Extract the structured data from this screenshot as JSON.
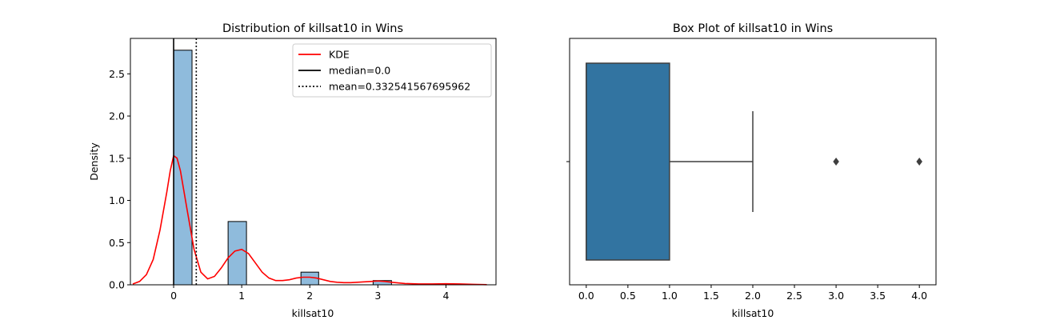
{
  "chart_data": [
    {
      "type": "bar",
      "title": "Distribution of killsat10 in Wins",
      "xlabel": "killsat10",
      "ylabel": "Density",
      "xlim": [
        -0.635,
        4.735
      ],
      "ylim": [
        0,
        2.92
      ],
      "xticks": [
        {
          "value": 0,
          "label": "0"
        },
        {
          "value": 1,
          "label": "1"
        },
        {
          "value": 2,
          "label": "2"
        },
        {
          "value": 3,
          "label": "3"
        },
        {
          "value": 4,
          "label": "4"
        }
      ],
      "yticks": [
        {
          "value": 0.0,
          "label": "0.0"
        },
        {
          "value": 0.5,
          "label": "0.5"
        },
        {
          "value": 1.0,
          "label": "1.0"
        },
        {
          "value": 1.5,
          "label": "1.5"
        },
        {
          "value": 2.0,
          "label": "2.0"
        },
        {
          "value": 2.5,
          "label": "2.5"
        }
      ],
      "histogram": {
        "bar_color": "#8fbbdc",
        "edge_color": "#000000",
        "bins": [
          {
            "x0": 0.0,
            "x1": 0.27,
            "density": 2.78
          },
          {
            "x0": 0.8,
            "x1": 1.07,
            "density": 0.75
          },
          {
            "x0": 1.87,
            "x1": 2.13,
            "density": 0.15
          },
          {
            "x0": 2.93,
            "x1": 3.2,
            "density": 0.05
          }
        ]
      },
      "kde": {
        "name": "KDE",
        "color": "#ff0000",
        "x": [
          -0.6,
          -0.5,
          -0.4,
          -0.3,
          -0.2,
          -0.1,
          -0.05,
          0.0,
          0.05,
          0.1,
          0.2,
          0.3,
          0.4,
          0.5,
          0.6,
          0.7,
          0.8,
          0.9,
          1.0,
          1.1,
          1.2,
          1.3,
          1.4,
          1.5,
          1.6,
          1.7,
          1.8,
          1.9,
          2.0,
          2.1,
          2.2,
          2.3,
          2.4,
          2.5,
          2.6,
          2.7,
          2.8,
          2.9,
          3.0,
          3.1,
          3.2,
          3.4,
          3.6,
          3.8,
          4.0,
          4.2,
          4.4,
          4.6
        ],
        "y": [
          0.01,
          0.04,
          0.12,
          0.3,
          0.65,
          1.1,
          1.35,
          1.53,
          1.5,
          1.35,
          0.88,
          0.42,
          0.15,
          0.07,
          0.1,
          0.2,
          0.32,
          0.4,
          0.42,
          0.37,
          0.26,
          0.15,
          0.08,
          0.05,
          0.05,
          0.06,
          0.08,
          0.09,
          0.09,
          0.08,
          0.06,
          0.04,
          0.03,
          0.025,
          0.025,
          0.03,
          0.035,
          0.04,
          0.045,
          0.04,
          0.03,
          0.015,
          0.01,
          0.01,
          0.012,
          0.01,
          0.005,
          0.002
        ]
      },
      "median": {
        "name": "median=0.0",
        "value": 0.0,
        "color": "#000000",
        "style": "solid"
      },
      "mean": {
        "name": "mean=0.332541567695962",
        "value": 0.332541567695962,
        "color": "#000000",
        "style": "dotted"
      },
      "legend": {
        "location": "top-right",
        "entries": [
          {
            "label": "KDE",
            "color": "#ff0000",
            "style": "solid"
          },
          {
            "label": "median=0.0",
            "color": "#000000",
            "style": "solid"
          },
          {
            "label": "mean=0.332541567695962",
            "color": "#000000",
            "style": "dotted"
          }
        ]
      },
      "grid": false
    },
    {
      "type": "box",
      "title": "Box Plot of killsat10 in Wins",
      "xlabel": "killsat10",
      "ylabel": "",
      "xlim": [
        -0.2,
        4.2
      ],
      "xticks": [
        {
          "value": 0.0,
          "label": "0.0"
        },
        {
          "value": 0.5,
          "label": "0.5"
        },
        {
          "value": 1.0,
          "label": "1.0"
        },
        {
          "value": 1.5,
          "label": "1.5"
        },
        {
          "value": 2.0,
          "label": "2.0"
        },
        {
          "value": 2.5,
          "label": "2.5"
        },
        {
          "value": 3.0,
          "label": "3.0"
        },
        {
          "value": 3.5,
          "label": "3.5"
        },
        {
          "value": 4.0,
          "label": "4.0"
        }
      ],
      "box": {
        "whisker_low": 0.0,
        "q1": 0.0,
        "median": 0.0,
        "q3": 1.0,
        "whisker_high": 2.0,
        "fliers": [
          3.0,
          4.0
        ],
        "fill_color": "#3274a1",
        "line_color": "#3f3f3f"
      },
      "grid": false
    }
  ]
}
